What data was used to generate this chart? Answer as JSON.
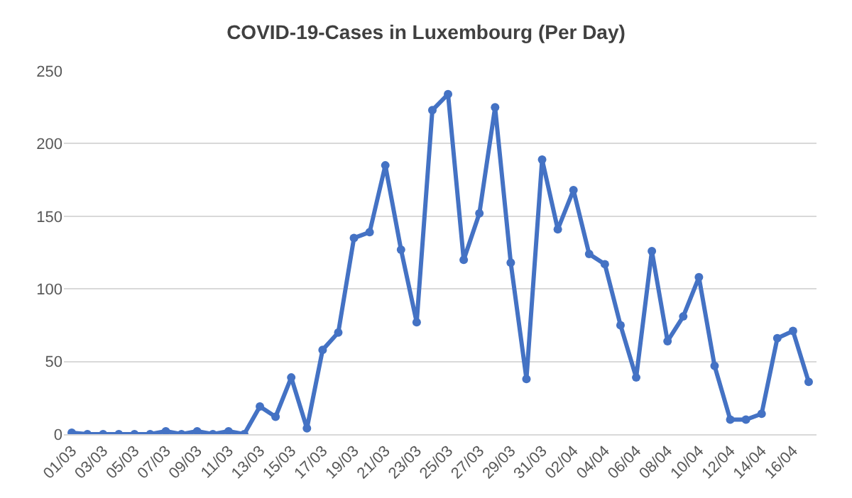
{
  "chart_data": {
    "type": "line",
    "title": "COVID-19-Cases in Luxembourg (Per Day)",
    "categories": [
      "01/03",
      null,
      "03/03",
      null,
      "05/03",
      null,
      "07/03",
      null,
      "09/03",
      null,
      "11/03",
      null,
      "13/03",
      null,
      "15/03",
      null,
      "17/03",
      null,
      "19/03",
      null,
      "21/03",
      null,
      "23/03",
      null,
      "25/03",
      null,
      "27/03",
      null,
      "29/03",
      null,
      "31/03",
      null,
      "02/04",
      null,
      "04/04",
      null,
      "06/04",
      null,
      "08/04",
      null,
      "10/04",
      null,
      "12/04",
      null,
      "14/04",
      null,
      "16/04",
      null
    ],
    "series": [
      {
        "color": "#4472c4",
        "values": [
          1,
          0,
          0,
          0,
          0,
          0,
          2,
          0,
          2,
          0,
          2,
          0,
          19,
          12,
          39,
          4,
          58,
          70,
          135,
          139,
          185,
          127,
          77,
          223,
          234,
          120,
          152,
          225,
          118,
          38,
          189,
          141,
          168,
          124,
          117,
          75,
          39,
          126,
          64,
          81,
          108,
          47,
          10,
          10,
          14,
          66,
          71,
          36
        ]
      }
    ],
    "ylim": [
      0,
      250
    ],
    "yticks": [
      0,
      50,
      100,
      150,
      200,
      250
    ],
    "grid": "y",
    "marker": "circle",
    "line_style": "solid"
  }
}
